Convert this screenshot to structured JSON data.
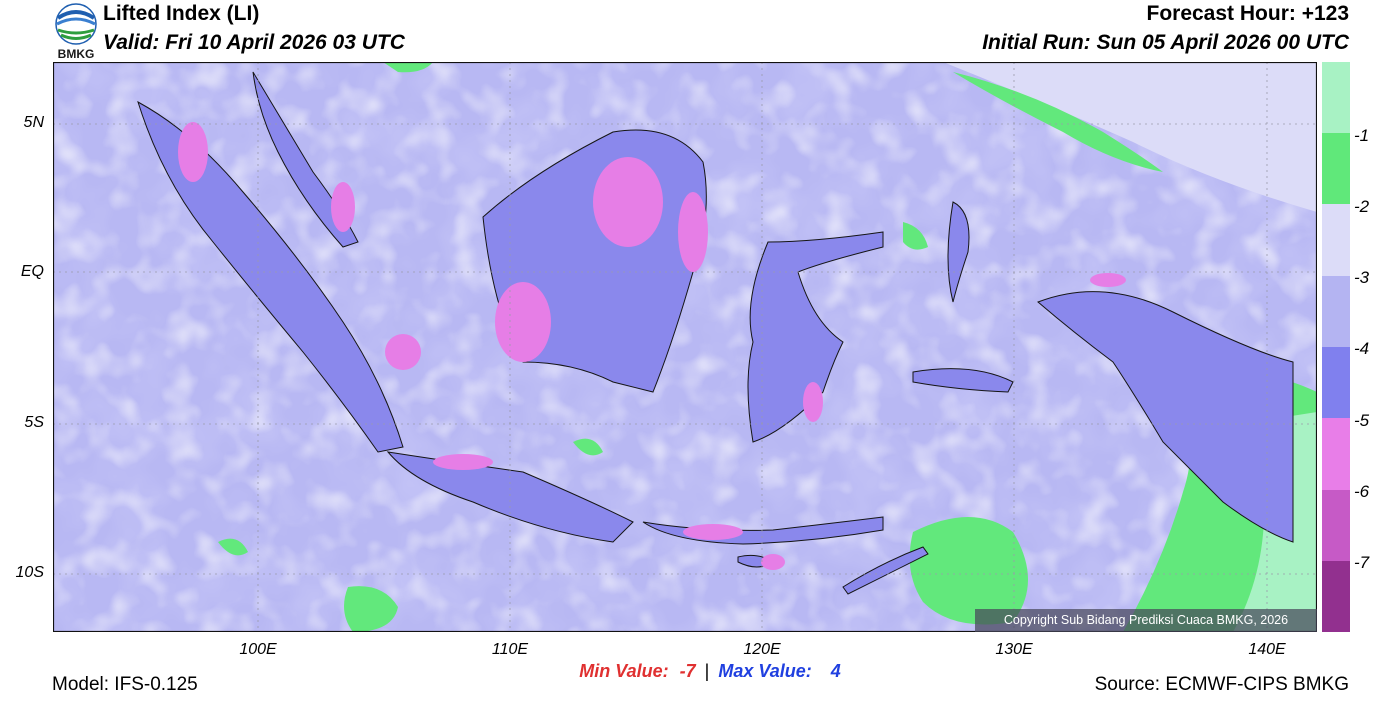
{
  "header": {
    "logo_text": "BMKG",
    "title": "Lifted Index (LI)",
    "valid": "Valid: Fri 10 April 2026 03 UTC",
    "forecast_hour": "Forecast Hour: +123",
    "initial_run": "Initial Run: Sun 05 April 2026 00 UTC"
  },
  "map": {
    "lat_labels": [
      "5N",
      "EQ",
      "5S",
      "10S"
    ],
    "lon_labels": [
      "100E",
      "110E",
      "120E",
      "130E",
      "140E"
    ],
    "copyright": "Copyright Sub Bidang Prediksi Cuaca BMKG, 2026"
  },
  "colorbar": {
    "labels": [
      "-1",
      "-2",
      "-3",
      "-4",
      "-5",
      "-6",
      "-7"
    ],
    "colors": [
      "#a8f2c4",
      "#60e87a",
      "#dcdcf8",
      "#b4b4f2",
      "#8080ee",
      "#e87ee8",
      "#c65ac6",
      "#92308f"
    ]
  },
  "stats": {
    "min_label": "Min Value:",
    "min_value": "-7",
    "separator": "|",
    "max_label": "Max Value:",
    "max_value": "4",
    "min_color": "#e03030",
    "max_color": "#2040e0"
  },
  "footer": {
    "model": "Model: IFS-0.125",
    "source": "Source: ECMWF-CIPS BMKG"
  }
}
